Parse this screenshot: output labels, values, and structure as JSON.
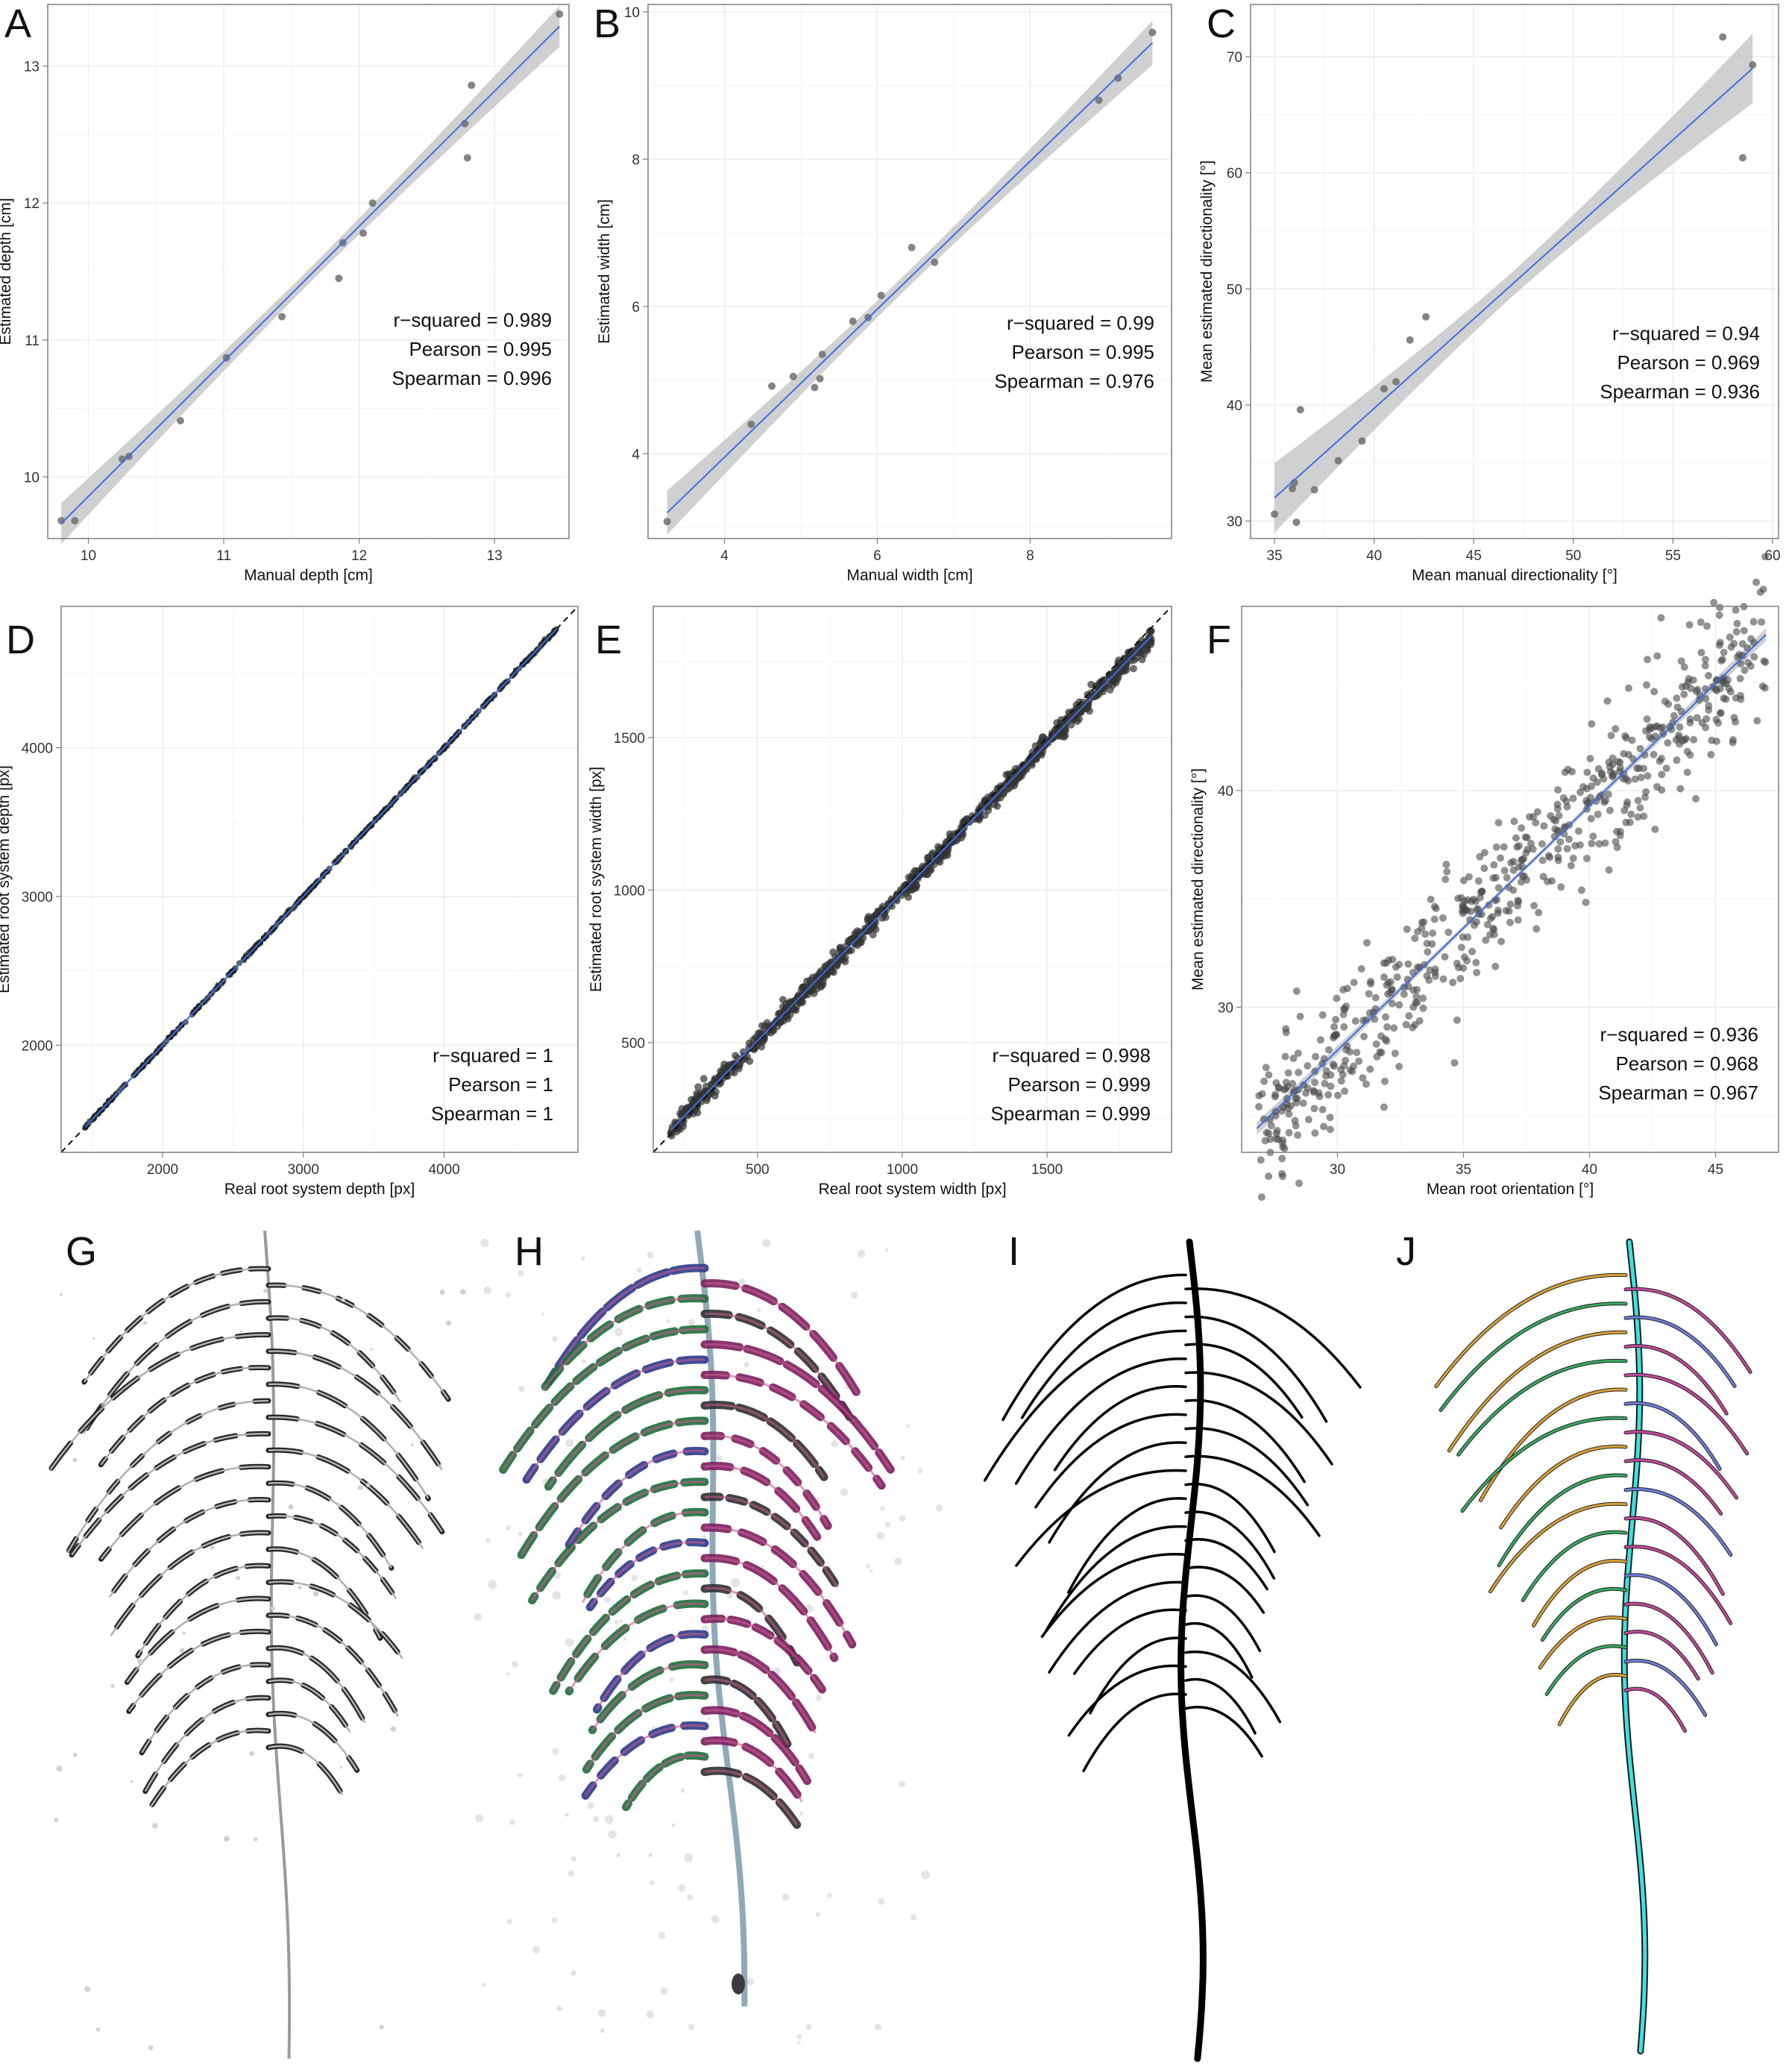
{
  "chart_data": [
    {
      "id": "A",
      "panel_label": "A",
      "type": "scatter",
      "xlabel": "Manual depth [cm]",
      "ylabel": "Estimated depth [cm]",
      "xlim": [
        9.7,
        13.55
      ],
      "ylim": [
        9.55,
        13.45
      ],
      "xticks": [
        10,
        11,
        12,
        13
      ],
      "yticks": [
        10,
        11,
        12,
        13
      ],
      "points": [
        [
          9.8,
          9.68
        ],
        [
          9.9,
          9.68
        ],
        [
          10.25,
          10.13
        ],
        [
          10.3,
          10.15
        ],
        [
          10.68,
          10.41
        ],
        [
          11.02,
          10.87
        ],
        [
          11.43,
          11.17
        ],
        [
          11.85,
          11.45
        ],
        [
          11.88,
          11.71
        ],
        [
          12.03,
          11.78
        ],
        [
          12.1,
          12.0
        ],
        [
          12.78,
          12.58
        ],
        [
          12.8,
          12.33
        ],
        [
          12.83,
          12.86
        ],
        [
          13.48,
          13.38
        ]
      ],
      "fit": {
        "x": [
          9.8,
          13.48
        ],
        "y": [
          9.66,
          13.29
        ],
        "band": 0.15
      },
      "stats": [
        {
          "label": "r−squared =",
          "value": "0.989"
        },
        {
          "label": "Pearson =",
          "value": "0.995"
        },
        {
          "label": "Spearman =",
          "value": "0.996"
        }
      ],
      "grid": true,
      "colors": {
        "point": "#6e6e6e",
        "line": "#3b6fe0",
        "band": "#c8c8c8"
      }
    },
    {
      "id": "B",
      "panel_label": "B",
      "type": "scatter",
      "xlabel": "Manual width [cm]",
      "ylabel": "Estimated width [cm]",
      "xlim": [
        3.0,
        9.85
      ],
      "ylim": [
        2.85,
        10.1
      ],
      "xticks": [
        4,
        6,
        8
      ],
      "yticks": [
        4,
        6,
        8,
        10
      ],
      "points": [
        [
          3.25,
          3.08
        ],
        [
          4.35,
          4.4
        ],
        [
          4.62,
          4.92
        ],
        [
          4.9,
          5.05
        ],
        [
          5.18,
          4.9
        ],
        [
          5.25,
          5.02
        ],
        [
          5.28,
          5.35
        ],
        [
          5.68,
          5.8
        ],
        [
          5.88,
          5.85
        ],
        [
          6.05,
          6.15
        ],
        [
          6.45,
          6.8
        ],
        [
          6.75,
          6.6
        ],
        [
          8.9,
          8.8
        ],
        [
          9.15,
          9.1
        ],
        [
          9.6,
          9.72
        ]
      ],
      "fit": {
        "x": [
          3.25,
          9.6
        ],
        "y": [
          3.2,
          9.58
        ],
        "band": 0.3
      },
      "stats": [
        {
          "label": "r−squared =",
          "value": "0.99"
        },
        {
          "label": "Pearson =",
          "value": "0.995"
        },
        {
          "label": "Spearman =",
          "value": "0.976"
        }
      ],
      "grid": true,
      "colors": {
        "point": "#6e6e6e",
        "line": "#3b6fe0",
        "band": "#c8c8c8"
      }
    },
    {
      "id": "C",
      "panel_label": "C",
      "type": "scatter",
      "xlabel": "Mean manual directionality [°]",
      "ylabel": "Mean estimated directionality [°]",
      "xlim": [
        33.8,
        60.3
      ],
      "ylim": [
        28.5,
        74.5
      ],
      "xticks": [
        35,
        40,
        45,
        50,
        55,
        60
      ],
      "yticks": [
        30,
        40,
        50,
        60,
        70
      ],
      "points": [
        [
          35.0,
          30.6
        ],
        [
          35.9,
          32.8
        ],
        [
          36.0,
          33.3
        ],
        [
          36.1,
          29.9
        ],
        [
          36.3,
          39.6
        ],
        [
          37.0,
          32.7
        ],
        [
          38.2,
          35.2
        ],
        [
          39.4,
          36.9
        ],
        [
          40.5,
          41.4
        ],
        [
          41.1,
          42.0
        ],
        [
          41.8,
          45.6
        ],
        [
          42.6,
          47.6
        ],
        [
          57.5,
          71.7
        ],
        [
          58.5,
          61.3
        ],
        [
          59.0,
          69.3
        ]
      ],
      "fit": {
        "x": [
          35.0,
          59.0
        ],
        "y": [
          32.0,
          69.0
        ],
        "band": 3.0
      },
      "stats": [
        {
          "label": "r−squared =",
          "value": "0.94"
        },
        {
          "label": "Pearson =",
          "value": "0.969"
        },
        {
          "label": "Spearman =",
          "value": "0.936"
        }
      ],
      "grid": true,
      "colors": {
        "point": "#6e6e6e",
        "line": "#3b6fe0",
        "band": "#c8c8c8"
      }
    },
    {
      "id": "D",
      "panel_label": "D",
      "type": "scatter",
      "xlabel": "Real root system depth [px]",
      "ylabel": "Estimated root system depth [px]",
      "xlim": [
        1280,
        4950
      ],
      "ylim": [
        1280,
        4950
      ],
      "xticks": [
        2000,
        3000,
        4000
      ],
      "yticks": [
        2000,
        3000,
        4000
      ],
      "points": [],
      "dense_points": {
        "x_from": 1450,
        "x_to": 4800,
        "count": 420,
        "noise": 4,
        "slope": 1.0,
        "intercept": 0,
        "seed": 7
      },
      "fit": {
        "x": [
          1450,
          4800
        ],
        "y": [
          1450,
          4800
        ],
        "band": 0
      },
      "reference_line": {
        "x": [
          1280,
          4950
        ],
        "y": [
          1280,
          4950
        ]
      },
      "stats": [
        {
          "label": "r−squared =",
          "value": "1"
        },
        {
          "label": "Pearson =",
          "value": "1"
        },
        {
          "label": "Spearman =",
          "value": "1"
        }
      ],
      "grid": true,
      "colors": {
        "point": "#1f1f1f",
        "line": "#3b6fe0",
        "band": "#c8c8c8"
      }
    },
    {
      "id": "E",
      "panel_label": "E",
      "type": "scatter",
      "xlabel": "Real root system width [px]",
      "ylabel": "Estimated root system width [px]",
      "xlim": [
        140,
        1930
      ],
      "ylim": [
        140,
        1930
      ],
      "xticks": [
        500,
        1000,
        1500
      ],
      "yticks": [
        500,
        1000,
        1500
      ],
      "points": [],
      "dense_points": {
        "x_from": 200,
        "x_to": 1860,
        "count": 900,
        "noise": 16,
        "slope": 0.975,
        "intercept": 18,
        "seed": 11
      },
      "fit": {
        "x": [
          200,
          1860
        ],
        "y": [
          213,
          1832
        ],
        "band": 0
      },
      "reference_line": {
        "x": [
          140,
          1930
        ],
        "y": [
          140,
          1930
        ]
      },
      "stats": [
        {
          "label": "r−squared =",
          "value": "0.998"
        },
        {
          "label": "Pearson =",
          "value": "0.999"
        },
        {
          "label": "Spearman =",
          "value": "0.999"
        }
      ],
      "grid": true,
      "colors": {
        "point": "#333333",
        "line": "#3b6fe0",
        "band": "#c8c8c8"
      }
    },
    {
      "id": "F",
      "panel_label": "F",
      "type": "scatter",
      "xlabel": "Mean root orientation [°]",
      "ylabel": "Mean estimated directionality [°]",
      "xlim": [
        26.2,
        47.5
      ],
      "ylim": [
        23.3,
        48.5
      ],
      "xticks": [
        30,
        35,
        40,
        45
      ],
      "yticks": [
        30,
        40
      ],
      "points": [],
      "dense_points": {
        "x_from": 26.8,
        "x_to": 47.0,
        "count": 620,
        "noise": 1.6,
        "slope": 1.13,
        "intercept": -5.9,
        "seed": 23
      },
      "fit": {
        "x": [
          26.8,
          47.0
        ],
        "y": [
          24.4,
          47.2
        ],
        "band": 0.3
      },
      "stats": [
        {
          "label": "r−squared =",
          "value": "0.936"
        },
        {
          "label": "Pearson =",
          "value": "0.968"
        },
        {
          "label": "Spearman =",
          "value": "0.967"
        }
      ],
      "grid": true,
      "colors": {
        "point": "#4a4a4a",
        "line": "#3b6fe0",
        "band": "#c8c8c8"
      }
    }
  ],
  "images": [
    {
      "id": "G",
      "panel_label": "G",
      "style": "grayscale-root"
    },
    {
      "id": "H",
      "panel_label": "H",
      "style": "colored-root"
    },
    {
      "id": "I",
      "panel_label": "I",
      "style": "traced-root"
    },
    {
      "id": "J",
      "panel_label": "J",
      "style": "segmented-root"
    }
  ]
}
